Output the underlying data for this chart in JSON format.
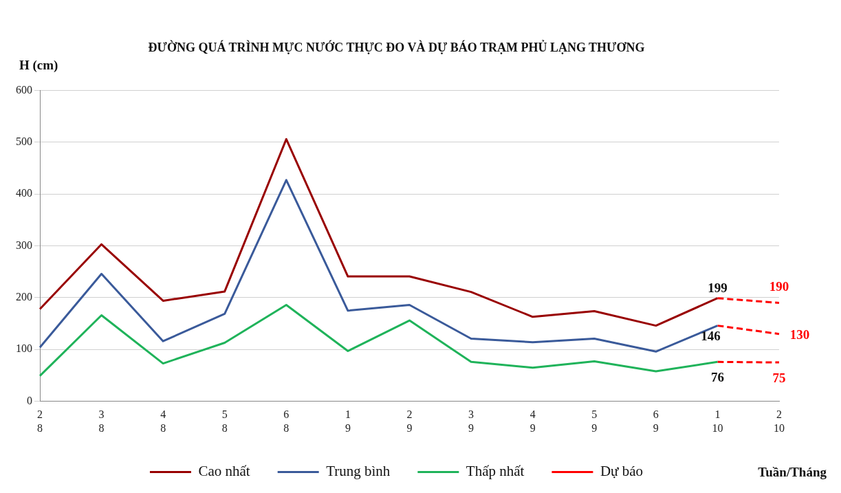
{
  "chart_data": {
    "type": "line",
    "title": "ĐƯỜNG QUÁ TRÌNH MỰC NƯỚC THỰC ĐO VÀ DỰ BÁO TRẠM PHỦ LẠNG THƯƠNG",
    "ylabel": "H (cm)",
    "xlabel": "Tuần/Tháng",
    "categories": [
      "2\n8",
      "3\n8",
      "4\n8",
      "5\n8",
      "6\n8",
      "1\n9",
      "2\n9",
      "3\n9",
      "4\n9",
      "5\n9",
      "6\n9",
      "1\n10",
      "2\n10"
    ],
    "ylim": [
      0,
      600
    ],
    "yticks": [
      0,
      100,
      200,
      300,
      400,
      500,
      600
    ],
    "grid": "y",
    "legend": "bottom",
    "marker": "none",
    "series": [
      {
        "name": "Cao nhất",
        "color": "#990000",
        "line_style": "solid",
        "values": [
          178,
          303,
          194,
          212,
          506,
          241,
          241,
          211,
          163,
          174,
          146,
          199,
          null
        ],
        "value_labels": [
          null,
          null,
          null,
          null,
          null,
          null,
          null,
          null,
          null,
          null,
          null,
          "199",
          null
        ]
      },
      {
        "name": "Trung bình",
        "color": "#3a5a9a",
        "line_style": "solid",
        "values": [
          104,
          246,
          116,
          169,
          427,
          175,
          186,
          121,
          114,
          121,
          96,
          146,
          null
        ],
        "value_labels": [
          null,
          null,
          null,
          null,
          null,
          null,
          null,
          null,
          null,
          null,
          null,
          "146",
          null
        ]
      },
      {
        "name": "Thấp nhất",
        "color": "#1fb35a",
        "line_style": "solid",
        "values": [
          49,
          166,
          73,
          113,
          186,
          97,
          156,
          76,
          65,
          77,
          58,
          76,
          null
        ],
        "value_labels": [
          null,
          null,
          null,
          null,
          null,
          null,
          null,
          null,
          null,
          null,
          null,
          "76",
          null
        ]
      },
      {
        "name": "Dự báo",
        "color": "#ff0000",
        "line_style": "dashed",
        "values": [
          null,
          null,
          null,
          null,
          null,
          null,
          null,
          null,
          null,
          null,
          null,
          199,
          190
        ],
        "value_labels": [
          null,
          null,
          null,
          null,
          null,
          null,
          null,
          null,
          null,
          null,
          null,
          null,
          "190"
        ]
      },
      {
        "color": "#ff0000",
        "line_style": "dashed",
        "values": [
          null,
          null,
          null,
          null,
          null,
          null,
          null,
          null,
          null,
          null,
          null,
          146,
          130
        ],
        "value_labels": [
          null,
          null,
          null,
          null,
          null,
          null,
          null,
          null,
          null,
          null,
          null,
          null,
          "130"
        ]
      },
      {
        "color": "#ff0000",
        "line_style": "dashed",
        "values": [
          null,
          null,
          null,
          null,
          null,
          null,
          null,
          null,
          null,
          null,
          null,
          76,
          75
        ],
        "value_labels": [
          null,
          null,
          null,
          null,
          null,
          null,
          null,
          null,
          null,
          null,
          null,
          null,
          "75"
        ]
      }
    ]
  }
}
